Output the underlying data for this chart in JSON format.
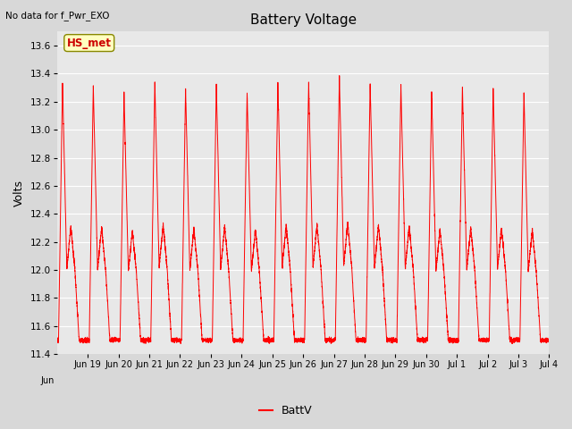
{
  "title": "Battery Voltage",
  "ylabel": "Volts",
  "top_left_text": "No data for f_Pwr_EXO",
  "legend_label": "BattV",
  "line_color": "#ff0000",
  "fig_bg_color": "#d8d8d8",
  "plot_bg_color": "#e8e8e8",
  "ylim": [
    11.4,
    13.7
  ],
  "yticks": [
    11.4,
    11.6,
    11.8,
    12.0,
    12.2,
    12.4,
    12.6,
    12.8,
    13.0,
    13.2,
    13.4,
    13.6
  ],
  "hs_met_label": "HS_met",
  "hs_met_box_color": "#ffffc0",
  "hs_met_text_color": "#cc0000",
  "tick_labels": [
    "Jun 19",
    "Jun 20",
    "Jun 21",
    "Jun 22",
    "Jun 23",
    "Jun 24",
    "Jun 25",
    "Jun 26",
    "Jun 27",
    "Jun 28",
    "Jun 29",
    "Jun 30",
    "Jul 1",
    "Jul 2",
    "Jul 3",
    "Jul 4"
  ],
  "n_days": 16,
  "start_label": "Jun"
}
